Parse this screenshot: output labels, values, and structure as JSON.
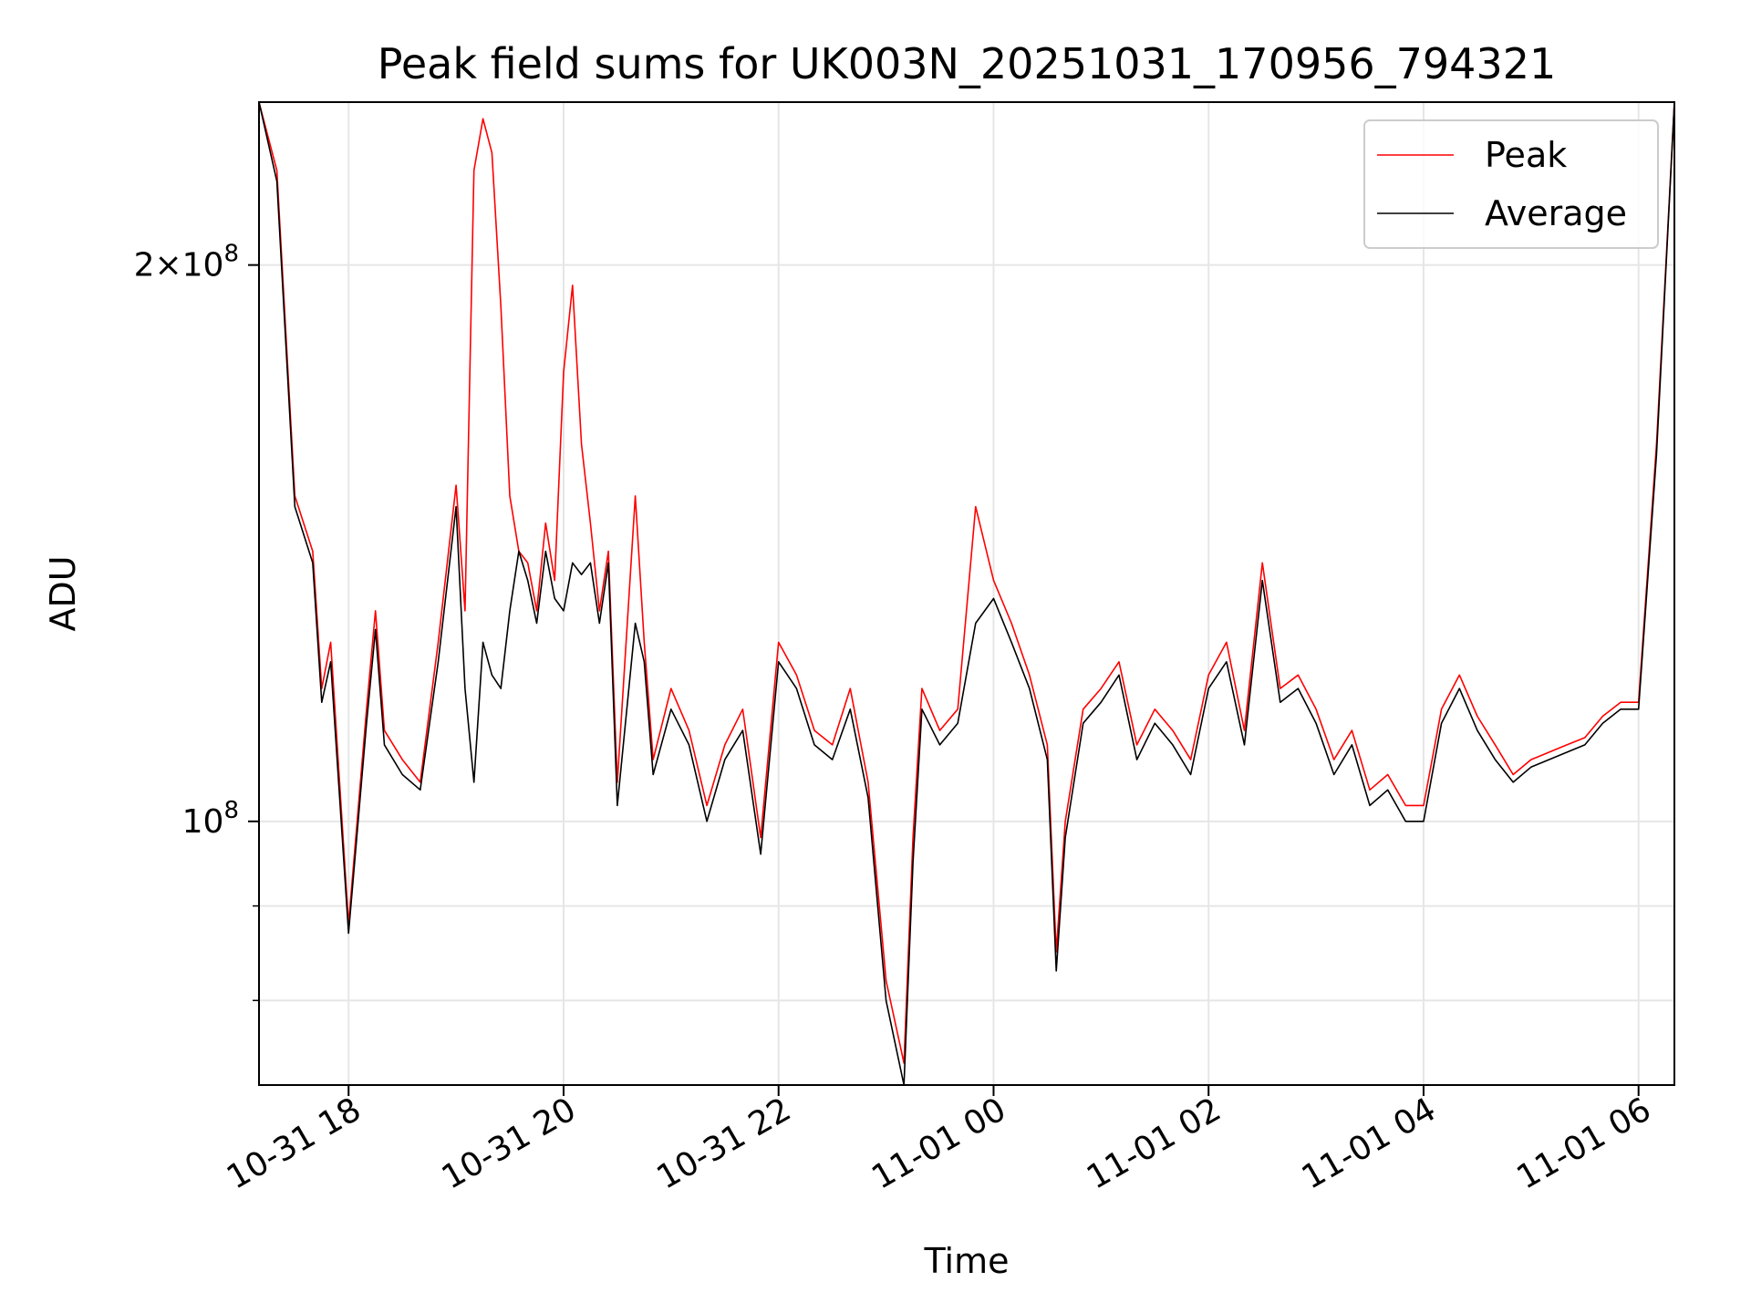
{
  "chart_data": {
    "type": "line",
    "title": "Peak field sums for UK003N_20251031_170956_794321",
    "xlabel": "Time",
    "ylabel": "ADU",
    "yscale": "log",
    "ylim": [
      72000000,
      245000000
    ],
    "xlim": [
      "10-31 17:10",
      "11-01 06:20"
    ],
    "grid": true,
    "legend_position": "top-right",
    "x_ticks": [
      {
        "label": "10-31 18",
        "t": "10-31 18:00"
      },
      {
        "label": "10-31 20",
        "t": "10-31 20:00"
      },
      {
        "label": "10-31 22",
        "t": "10-31 22:00"
      },
      {
        "label": "11-01 00",
        "t": "11-01 00:00"
      },
      {
        "label": "11-01 02",
        "t": "11-01 02:00"
      },
      {
        "label": "11-01 04",
        "t": "11-01 04:00"
      },
      {
        "label": "11-01 06",
        "t": "11-01 06:00"
      }
    ],
    "y_ticks": [
      {
        "value": 200000000,
        "label_base": "2",
        "label_mult": "×10",
        "label_exp": "8"
      },
      {
        "value": 100000000,
        "label_base": "",
        "label_mult": "10",
        "label_exp": "8"
      }
    ],
    "y_minor_ticks": [
      90000000,
      80000000,
      70000000,
      60000000
    ],
    "series": [
      {
        "name": "Peak",
        "color": "#ff0000",
        "x": [
          "10-31 17:10",
          "10-31 17:20",
          "10-31 17:30",
          "10-31 17:40",
          "10-31 17:45",
          "10-31 17:50",
          "10-31 18:00",
          "10-31 18:10",
          "10-31 18:15",
          "10-31 18:20",
          "10-31 18:30",
          "10-31 18:40",
          "10-31 18:50",
          "10-31 19:00",
          "10-31 19:05",
          "10-31 19:10",
          "10-31 19:15",
          "10-31 19:20",
          "10-31 19:25",
          "10-31 19:30",
          "10-31 19:35",
          "10-31 19:40",
          "10-31 19:45",
          "10-31 19:50",
          "10-31 19:55",
          "10-31 20:00",
          "10-31 20:05",
          "10-31 20:10",
          "10-31 20:15",
          "10-31 20:20",
          "10-31 20:25",
          "10-31 20:30",
          "10-31 20:40",
          "10-31 20:45",
          "10-31 20:50",
          "10-31 21:00",
          "10-31 21:10",
          "10-31 21:20",
          "10-31 21:30",
          "10-31 21:40",
          "10-31 21:50",
          "10-31 22:00",
          "10-31 22:10",
          "10-31 22:20",
          "10-31 22:30",
          "10-31 22:40",
          "10-31 22:50",
          "10-31 23:00",
          "10-31 23:10",
          "10-31 23:15",
          "10-31 23:20",
          "10-31 23:30",
          "10-31 23:40",
          "10-31 23:50",
          "11-01 00:00",
          "11-01 00:10",
          "11-01 00:20",
          "11-01 00:30",
          "11-01 00:35",
          "11-01 00:40",
          "11-01 00:50",
          "11-01 01:00",
          "11-01 01:10",
          "11-01 01:20",
          "11-01 01:30",
          "11-01 01:40",
          "11-01 01:50",
          "11-01 02:00",
          "11-01 02:10",
          "11-01 02:20",
          "11-01 02:30",
          "11-01 02:40",
          "11-01 02:50",
          "11-01 03:00",
          "11-01 03:10",
          "11-01 03:20",
          "11-01 03:30",
          "11-01 03:40",
          "11-01 03:50",
          "11-01 04:00",
          "11-01 04:10",
          "11-01 04:20",
          "11-01 04:30",
          "11-01 04:40",
          "11-01 04:50",
          "11-01 05:00",
          "11-01 05:10",
          "11-01 05:20",
          "11-01 05:30",
          "11-01 05:40",
          "11-01 05:50",
          "11-01 06:00",
          "11-01 06:10",
          "11-01 06:20"
        ],
        "y": [
          245000000,
          225000000,
          150000000,
          140000000,
          118000000,
          125000000,
          88000000,
          115000000,
          130000000,
          112000000,
          108000000,
          105000000,
          125000000,
          152000000,
          130000000,
          225000000,
          240000000,
          230000000,
          190000000,
          150000000,
          140000000,
          138000000,
          130000000,
          145000000,
          135000000,
          175000000,
          195000000,
          160000000,
          145000000,
          130000000,
          140000000,
          105000000,
          150000000,
          125000000,
          108000000,
          118000000,
          112000000,
          102000000,
          110000000,
          115000000,
          98000000,
          125000000,
          120000000,
          112000000,
          110000000,
          118000000,
          105000000,
          82000000,
          74000000,
          98000000,
          118000000,
          112000000,
          115000000,
          148000000,
          135000000,
          128000000,
          120000000,
          110000000,
          85000000,
          100000000,
          115000000,
          118000000,
          122000000,
          110000000,
          115000000,
          112000000,
          108000000,
          120000000,
          125000000,
          112000000,
          138000000,
          118000000,
          120000000,
          115000000,
          108000000,
          112000000,
          104000000,
          106000000,
          102000000,
          102000000,
          115000000,
          120000000,
          114000000,
          110000000,
          106000000,
          108000000,
          109000000,
          110000000,
          111000000,
          114000000,
          116000000,
          116000000,
          160000000,
          245000000
        ]
      },
      {
        "name": "Average",
        "color": "#000000",
        "x": [
          "10-31 17:10",
          "10-31 17:20",
          "10-31 17:30",
          "10-31 17:40",
          "10-31 17:45",
          "10-31 17:50",
          "10-31 18:00",
          "10-31 18:10",
          "10-31 18:15",
          "10-31 18:20",
          "10-31 18:30",
          "10-31 18:40",
          "10-31 18:50",
          "10-31 19:00",
          "10-31 19:05",
          "10-31 19:10",
          "10-31 19:15",
          "10-31 19:20",
          "10-31 19:25",
          "10-31 19:30",
          "10-31 19:35",
          "10-31 19:40",
          "10-31 19:45",
          "10-31 19:50",
          "10-31 19:55",
          "10-31 20:00",
          "10-31 20:05",
          "10-31 20:10",
          "10-31 20:15",
          "10-31 20:20",
          "10-31 20:25",
          "10-31 20:30",
          "10-31 20:40",
          "10-31 20:45",
          "10-31 20:50",
          "10-31 21:00",
          "10-31 21:10",
          "10-31 21:20",
          "10-31 21:30",
          "10-31 21:40",
          "10-31 21:50",
          "10-31 22:00",
          "10-31 22:10",
          "10-31 22:20",
          "10-31 22:30",
          "10-31 22:40",
          "10-31 22:50",
          "10-31 23:00",
          "10-31 23:10",
          "10-31 23:15",
          "10-31 23:20",
          "10-31 23:30",
          "10-31 23:40",
          "10-31 23:50",
          "11-01 00:00",
          "11-01 00:10",
          "11-01 00:20",
          "11-01 00:30",
          "11-01 00:35",
          "11-01 00:40",
          "11-01 00:50",
          "11-01 01:00",
          "11-01 01:10",
          "11-01 01:20",
          "11-01 01:30",
          "11-01 01:40",
          "11-01 01:50",
          "11-01 02:00",
          "11-01 02:10",
          "11-01 02:20",
          "11-01 02:30",
          "11-01 02:40",
          "11-01 02:50",
          "11-01 03:00",
          "11-01 03:10",
          "11-01 03:20",
          "11-01 03:30",
          "11-01 03:40",
          "11-01 03:50",
          "11-01 04:00",
          "11-01 04:10",
          "11-01 04:20",
          "11-01 04:30",
          "11-01 04:40",
          "11-01 04:50",
          "11-01 05:00",
          "11-01 05:10",
          "11-01 05:20",
          "11-01 05:30",
          "11-01 05:40",
          "11-01 05:50",
          "11-01 06:00",
          "11-01 06:10",
          "11-01 06:20"
        ],
        "y": [
          245000000,
          222000000,
          148000000,
          138000000,
          116000000,
          122000000,
          87000000,
          113000000,
          127000000,
          110000000,
          106000000,
          104000000,
          122000000,
          148000000,
          118000000,
          105000000,
          125000000,
          120000000,
          118000000,
          130000000,
          140000000,
          135000000,
          128000000,
          140000000,
          132000000,
          130000000,
          138000000,
          136000000,
          138000000,
          128000000,
          138000000,
          102000000,
          128000000,
          122000000,
          106000000,
          115000000,
          110000000,
          100000000,
          108000000,
          112000000,
          96000000,
          122000000,
          118000000,
          110000000,
          108000000,
          115000000,
          103000000,
          80000000,
          72000000,
          95000000,
          115000000,
          110000000,
          113000000,
          128000000,
          132000000,
          125000000,
          118000000,
          108000000,
          83000000,
          98000000,
          113000000,
          116000000,
          120000000,
          108000000,
          113000000,
          110000000,
          106000000,
          118000000,
          122000000,
          110000000,
          135000000,
          116000000,
          118000000,
          113000000,
          106000000,
          110000000,
          102000000,
          104000000,
          100000000,
          100000000,
          113000000,
          118000000,
          112000000,
          108000000,
          105000000,
          107000000,
          108000000,
          109000000,
          110000000,
          113000000,
          115000000,
          115000000,
          158000000,
          245000000
        ]
      }
    ]
  }
}
